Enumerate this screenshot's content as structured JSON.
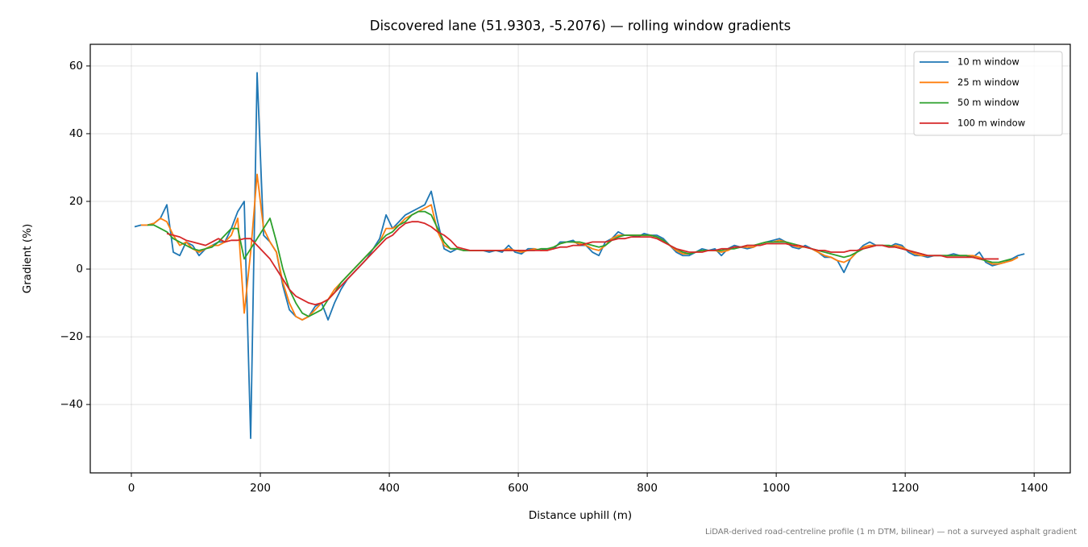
{
  "chart_data": {
    "type": "line",
    "title": "Discovered lane (51.9303, -5.2076) — rolling window gradients",
    "xlabel": "Distance uphill (m)",
    "ylabel": "Gradient (%)",
    "footnote": "LiDAR-derived road-centreline profile (1 m DTM, bilinear) — not a surveyed asphalt gradient",
    "grid": true,
    "legend": "upper right",
    "xlim": [
      -63.75,
      1456
    ],
    "ylim": [
      -60.2,
      66.4
    ],
    "xticks": [
      0,
      200,
      400,
      600,
      800,
      1000,
      1200,
      1400
    ],
    "yticks": [
      {
        "value": -40,
        "label": "−40"
      },
      {
        "value": -20,
        "label": "−20"
      },
      0,
      20,
      40,
      60
    ],
    "x": [
      5,
      15,
      25,
      35,
      45,
      55,
      65,
      75,
      85,
      95,
      105,
      115,
      125,
      135,
      145,
      155,
      165,
      175,
      185,
      195,
      205,
      215,
      225,
      235,
      245,
      255,
      265,
      275,
      285,
      295,
      305,
      315,
      325,
      335,
      345,
      355,
      365,
      375,
      385,
      395,
      405,
      415,
      425,
      435,
      445,
      455,
      465,
      475,
      485,
      495,
      505,
      515,
      525,
      535,
      545,
      555,
      565,
      575,
      585,
      595,
      605,
      615,
      625,
      635,
      645,
      655,
      665,
      675,
      685,
      695,
      705,
      715,
      725,
      735,
      745,
      755,
      765,
      775,
      785,
      795,
      805,
      815,
      825,
      835,
      845,
      855,
      865,
      875,
      885,
      895,
      905,
      915,
      925,
      935,
      945,
      955,
      965,
      975,
      985,
      995,
      1005,
      1015,
      1025,
      1035,
      1045,
      1055,
      1065,
      1075,
      1085,
      1095,
      1105,
      1115,
      1125,
      1135,
      1145,
      1155,
      1165,
      1175,
      1185,
      1195,
      1205,
      1215,
      1225,
      1235,
      1245,
      1255,
      1265,
      1275,
      1285,
      1295,
      1305,
      1315,
      1325,
      1335,
      1345,
      1355,
      1365,
      1375,
      1385
    ],
    "series": [
      {
        "name": "10 m window",
        "color": "#1f77b4",
        "values": [
          12.5,
          13,
          13,
          13.5,
          15,
          19,
          5,
          4,
          8,
          7,
          4,
          6,
          7,
          8,
          8,
          12,
          17,
          20,
          -50,
          58,
          10,
          8,
          5,
          -5,
          -12,
          -14,
          -15,
          -14,
          -11,
          -10,
          -15,
          -10,
          -6,
          -3,
          -1,
          1,
          3,
          6,
          9,
          16,
          12,
          14,
          16,
          17,
          18,
          19,
          23,
          14,
          6,
          5,
          6,
          5.5,
          5.5,
          5.5,
          5.5,
          5,
          5.5,
          5,
          7,
          5,
          4.5,
          6,
          6,
          5.5,
          6,
          6,
          8,
          8,
          8.5,
          7,
          7,
          5,
          4,
          8,
          9,
          11,
          10,
          10,
          9.5,
          10.5,
          10,
          10,
          9,
          7,
          5,
          4,
          4,
          5,
          6,
          5.5,
          6,
          4,
          6,
          7,
          6.5,
          6,
          6.5,
          7.5,
          8,
          8.5,
          9,
          8,
          6.5,
          6,
          7,
          6,
          5,
          3.5,
          3.5,
          2.5,
          -1,
          3,
          5,
          7,
          8,
          7,
          7,
          6.5,
          7.5,
          7,
          5,
          4,
          4,
          3.5,
          4,
          4,
          4,
          4.5,
          4,
          4,
          3.5,
          5,
          2,
          1,
          1.5,
          2,
          3,
          4,
          4.5
        ]
      },
      {
        "name": "25 m window",
        "color": "#ff7f0e",
        "values": [
          null,
          13,
          13,
          13.5,
          15,
          14,
          10,
          7,
          8,
          6,
          5,
          6,
          7,
          7,
          8,
          10,
          15,
          -13,
          5,
          28,
          12,
          8,
          5,
          -4,
          -10,
          -14,
          -15,
          -14,
          -12,
          -10,
          -9,
          -6,
          -4,
          -2,
          0,
          2,
          4,
          6,
          8,
          12,
          12,
          13,
          15,
          16,
          17,
          18,
          19,
          11,
          7,
          6,
          6,
          5.5,
          5.5,
          5.5,
          5.5,
          5.5,
          5.5,
          5.5,
          6,
          5.5,
          5,
          5.5,
          6,
          5.5,
          5.5,
          6.5,
          7.5,
          8,
          8,
          7.5,
          7,
          6,
          5.5,
          7,
          9,
          10,
          10,
          10,
          10,
          10,
          10,
          9.5,
          8.5,
          7,
          5.5,
          4.5,
          4.5,
          5,
          5.5,
          5.5,
          5.5,
          5,
          5.5,
          6.5,
          6.5,
          6.5,
          6.5,
          7.5,
          8,
          8,
          8.5,
          8,
          7,
          6.5,
          6.5,
          6,
          5,
          4,
          3.5,
          2.5,
          2,
          3,
          5,
          6.5,
          7,
          7,
          7,
          6.5,
          7,
          6.5,
          5.5,
          4.5,
          4,
          4,
          4,
          4,
          4,
          4,
          4,
          4,
          4,
          3.5,
          2.5,
          1.5,
          1.5,
          2,
          2.5,
          3.5,
          null
        ]
      },
      {
        "name": "50 m window",
        "color": "#2ca02c",
        "values": [
          null,
          null,
          13,
          13,
          12,
          11,
          9,
          8,
          7,
          6,
          5.5,
          6,
          6.5,
          8,
          10,
          12,
          12,
          3,
          6,
          9,
          12,
          15,
          8,
          0,
          -6,
          -10,
          -13,
          -14,
          -13,
          -12,
          -9,
          -7,
          -4,
          -2,
          0,
          2,
          4,
          6,
          8,
          10,
          11,
          13,
          14,
          16,
          17,
          17,
          16,
          12,
          8,
          6,
          6,
          5.5,
          5.5,
          5.5,
          5.5,
          5.5,
          5.5,
          5.5,
          5.5,
          5.5,
          5.5,
          5.5,
          5.5,
          6,
          6,
          6.5,
          7.5,
          8,
          8,
          8,
          7.5,
          7,
          6.5,
          7,
          8.5,
          9.5,
          10,
          10,
          10,
          10,
          10,
          9.5,
          8.5,
          7,
          6,
          5,
          4.5,
          5,
          5.5,
          5.5,
          5.5,
          5.5,
          6,
          6,
          6.5,
          7,
          7,
          7.5,
          8,
          8,
          8,
          8,
          7.5,
          7,
          6.5,
          6,
          5.5,
          5,
          4.5,
          4,
          3.5,
          4,
          5,
          6,
          6.5,
          7,
          7,
          7,
          6.5,
          6,
          5.5,
          5,
          4.5,
          4,
          4,
          4,
          4,
          4,
          4,
          4,
          3.5,
          3,
          2.5,
          2,
          2,
          2.5,
          3,
          null,
          null
        ]
      },
      {
        "name": "100 m window",
        "color": "#d62728",
        "values": [
          null,
          null,
          null,
          null,
          null,
          10.5,
          10,
          9.5,
          8.5,
          8,
          7.5,
          7,
          8,
          9,
          8,
          8.5,
          8.5,
          9,
          9,
          7,
          5,
          3,
          0,
          -3,
          -6,
          -8,
          -9,
          -10,
          -10.5,
          -10,
          -9,
          -7,
          -5,
          -3,
          -1,
          1,
          3,
          5,
          7,
          9,
          10,
          12,
          13.5,
          14,
          14,
          13.5,
          12.5,
          11,
          10,
          8.5,
          6.5,
          6,
          5.5,
          5.5,
          5.5,
          5.5,
          5.5,
          5.5,
          5.5,
          5.5,
          5.5,
          5.5,
          5.5,
          5.5,
          5.5,
          6,
          6.5,
          6.5,
          7,
          7,
          7.5,
          8,
          8,
          8,
          8.5,
          9,
          9,
          9.5,
          9.5,
          9.5,
          9.5,
          9,
          8,
          7,
          6,
          5.5,
          5,
          5,
          5,
          5.5,
          5.5,
          6,
          6,
          6.5,
          6.5,
          7,
          7,
          7,
          7.5,
          7.5,
          7.5,
          7.5,
          7,
          7,
          6.5,
          6,
          5.5,
          5.5,
          5,
          5,
          5,
          5.5,
          5.5,
          6,
          6.5,
          7,
          7,
          6.5,
          6.5,
          6,
          5.5,
          5,
          4.5,
          4,
          4,
          4,
          3.5,
          3.5,
          3.5,
          3.5,
          3.5,
          3,
          3,
          3,
          3,
          null,
          null,
          null,
          null
        ]
      }
    ]
  }
}
